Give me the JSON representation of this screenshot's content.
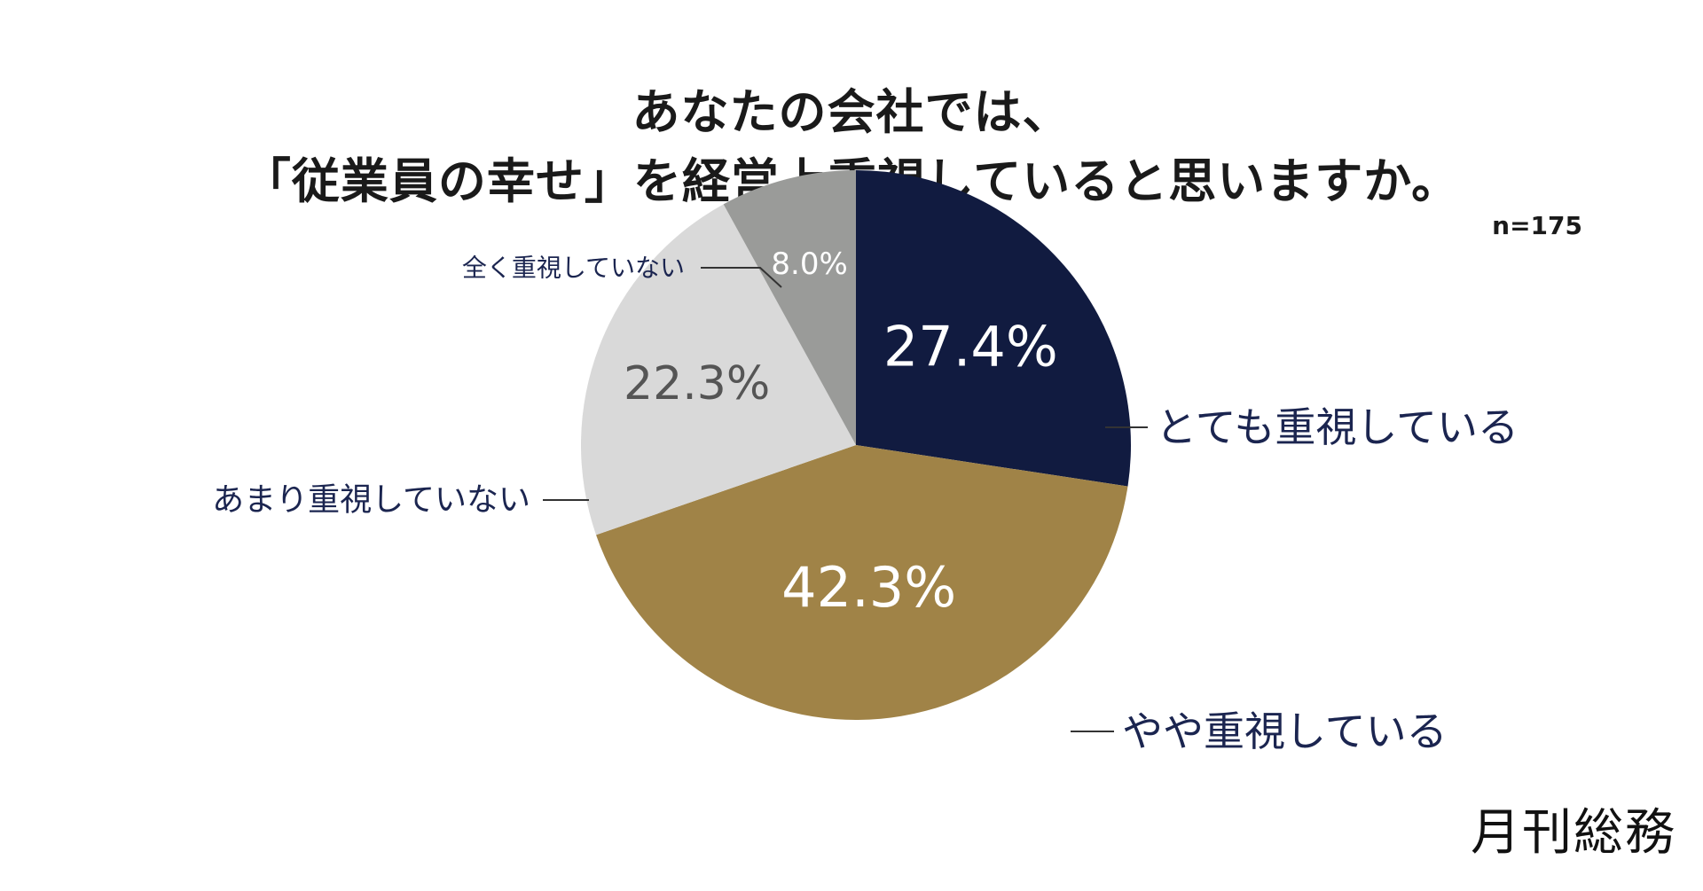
{
  "title": {
    "line1": "あなたの会社では、",
    "line2": "「従業員の幸せ」を経営上重視していると思いますか。"
  },
  "sample_size": "n=175",
  "logo": "月刊総務",
  "colors": {
    "navy": "#111b40",
    "gold": "#a08347",
    "light_gray": "#d9d9d9",
    "gray": "#9a9b99",
    "label_text": "#1b2550",
    "leader_line": "#333333"
  },
  "chart_data": {
    "type": "pie",
    "title": "あなたの会社では、「従業員の幸せ」を経営上重視していると思いますか。",
    "start_angle_deg": 0,
    "direction": "clockwise",
    "slices": [
      {
        "label": "とても重視している",
        "value": 27.4,
        "display": "27.4%",
        "color": "#111b40",
        "value_text_color": "#ffffff"
      },
      {
        "label": "やや重視している",
        "value": 42.3,
        "display": "42.3%",
        "color": "#a08347",
        "value_text_color": "#ffffff"
      },
      {
        "label": "あまり重視していない",
        "value": 22.3,
        "display": "22.3%",
        "color": "#d9d9d9",
        "value_text_color": "#555555"
      },
      {
        "label": "全く重視していない",
        "value": 8.0,
        "display": "8.0%",
        "color": "#9a9b99",
        "value_text_color": "#ffffff"
      }
    ]
  }
}
